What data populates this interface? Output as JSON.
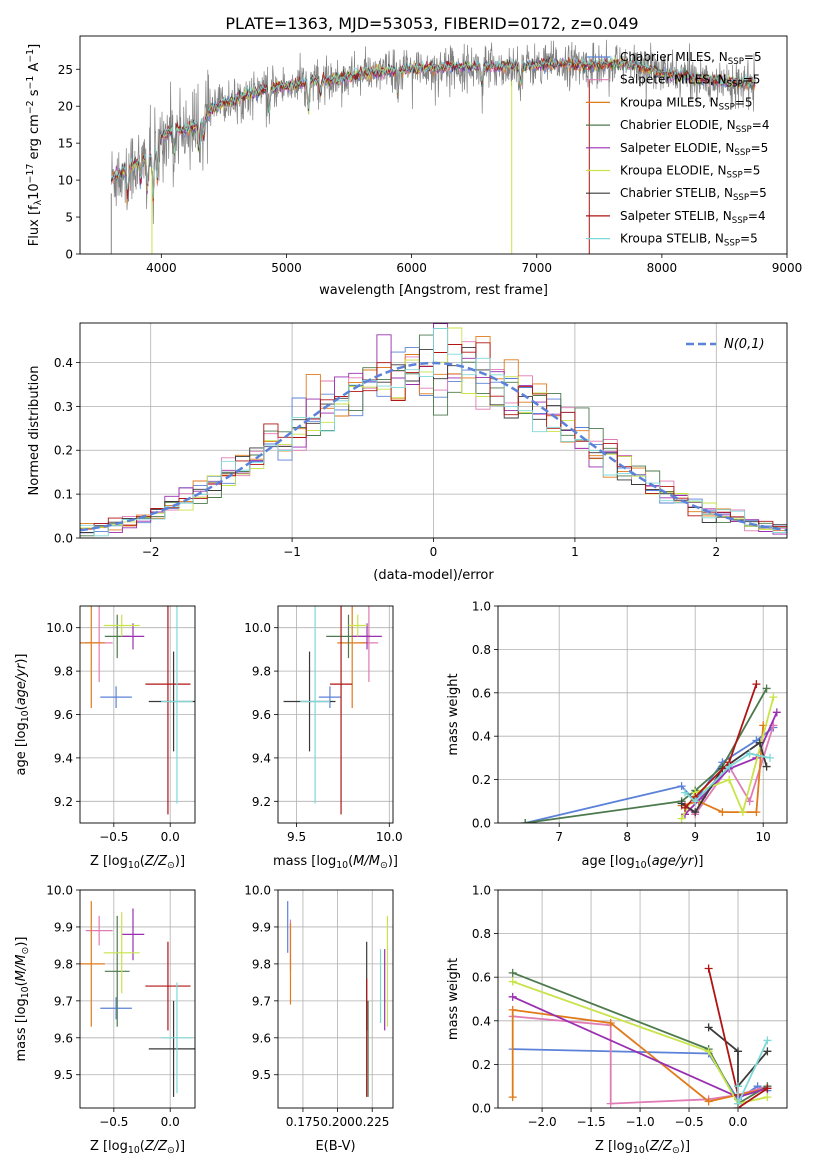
{
  "figure_title": "PLATE=1363, MJD=53053, FIBERID=0172, z=0.049",
  "models": [
    {
      "name": "Chabrier MILES, N$_{SSP}$=5",
      "label": "Chabrier MILES, N",
      "sub": "SSP",
      "tail": "=5",
      "color": "#5b82d8"
    },
    {
      "name": "Salpeter MILES, N$_{SSP}$=5",
      "label": "Salpeter MILES, N",
      "sub": "SSP",
      "tail": "=5",
      "color": "#e07bb5"
    },
    {
      "name": "Kroupa MILES, N$_{SSP}$=5",
      "label": "Kroupa MILES, N",
      "sub": "SSP",
      "tail": "=5",
      "color": "#e07a1a"
    },
    {
      "name": "Chabrier ELODIE, N$_{SSP}$=4",
      "label": "Chabrier ELODIE, N",
      "sub": "SSP",
      "tail": "=4",
      "color": "#4c7a4c"
    },
    {
      "name": "Salpeter ELODIE, N$_{SSP}$=5",
      "label": "Salpeter ELODIE, N",
      "sub": "SSP",
      "tail": "=5",
      "color": "#9a2fb0"
    },
    {
      "name": "Kroupa ELODIE, N$_{SSP}$=5",
      "label": "Kroupa ELODIE, N",
      "sub": "SSP",
      "tail": "=5",
      "color": "#c9e34a"
    },
    {
      "name": "Chabrier STELIB, N$_{SSP}$=5",
      "label": "Chabrier STELIB, N",
      "sub": "SSP",
      "tail": "=5",
      "color": "#3a3a3a"
    },
    {
      "name": "Salpeter STELIB, N$_{SSP}$=4",
      "label": "Salpeter STELIB, N",
      "sub": "SSP",
      "tail": "=4",
      "color": "#b01515"
    },
    {
      "name": "Kroupa STELIB, N$_{SSP}$=5",
      "label": "Kroupa STELIB, N",
      "sub": "SSP",
      "tail": "=5",
      "color": "#7fd8d8"
    }
  ],
  "chart_data": [
    {
      "id": "spectrum",
      "type": "line",
      "xlabel": "wavelength [Angstrom, rest frame]",
      "ylabel_parts": [
        "Flux [f",
        "λ",
        "10",
        "−17",
        " erg cm",
        "−2",
        " s",
        "−1",
        " A",
        "−1",
        "]"
      ],
      "xlim": [
        3350,
        9000
      ],
      "ylim": [
        0,
        29.5
      ],
      "xticks": [
        4000,
        5000,
        6000,
        7000,
        8000,
        9000
      ],
      "yticks": [
        0,
        5,
        10,
        15,
        20,
        25
      ],
      "legend": "upper right",
      "data_color": "#808080",
      "continuum_x": [
        3600,
        3700,
        3800,
        3900,
        4000,
        4100,
        4200,
        4300,
        4400,
        4500,
        4600,
        4800,
        5000,
        5200,
        5400,
        5600,
        5800,
        6000,
        6200,
        6400,
        6600,
        6800,
        7000,
        7200,
        7400,
        7600,
        7800,
        8000,
        8200,
        8400,
        8600,
        8750
      ],
      "continuum_y": [
        10.2,
        11.3,
        12.2,
        13.0,
        15.8,
        17.0,
        16.8,
        17.5,
        19.5,
        20.4,
        21.0,
        22.2,
        22.7,
        23.3,
        23.7,
        24.3,
        24.7,
        25.0,
        25.2,
        25.4,
        25.3,
        25.4,
        25.5,
        25.8,
        25.5,
        25.7,
        25.5,
        24.5,
        24.0,
        23.5,
        23.2,
        23.0
      ],
      "absorption": [
        {
          "x": 3730,
          "depth": 4.0
        },
        {
          "x": 3835,
          "depth": 3.0
        },
        {
          "x": 3889,
          "depth": 4.0
        },
        {
          "x": 3934,
          "depth": 7.0
        },
        {
          "x": 3969,
          "depth": 5.0
        },
        {
          "x": 4102,
          "depth": 3.5
        },
        {
          "x": 4300,
          "depth": 4.0
        },
        {
          "x": 4340,
          "depth": 3.0
        },
        {
          "x": 4861,
          "depth": 3.0
        },
        {
          "x": 5175,
          "depth": 4.0
        },
        {
          "x": 5270,
          "depth": 2.0
        },
        {
          "x": 5890,
          "depth": 3.0
        },
        {
          "x": 6563,
          "depth": 2.5
        },
        {
          "x": 6870,
          "depth": 2.5
        }
      ],
      "masked_drops": [
        {
          "x": 3600,
          "color": "#808080"
        },
        {
          "x": 3925,
          "color": "#c9e34a"
        },
        {
          "x": 6800,
          "color": "#c9e34a"
        },
        {
          "x": 7420,
          "color": "#b01515"
        }
      ]
    },
    {
      "id": "residuals",
      "type": "bar",
      "xlabel": "(data-model)/error",
      "ylabel": "Normed distribution",
      "xlim": [
        -2.5,
        2.5
      ],
      "ylim": [
        0,
        0.49
      ],
      "xticks": [
        -2,
        -1,
        0,
        1,
        2
      ],
      "yticks": [
        0.0,
        0.1,
        0.2,
        0.3,
        0.4
      ],
      "grid": true,
      "legend": "upper right",
      "reference_label": "N(0,1)",
      "reference_color": "#5b82d8",
      "bin_width": 0.1
    },
    {
      "id": "age-vs-Z",
      "type": "scatter",
      "xlabel": "Z [log10(Z/Z⊙)]",
      "ylabel": "age  [log10(age/yr)]",
      "xlim": [
        -0.8,
        0.22
      ],
      "ylim": [
        9.1,
        10.1
      ],
      "xticks": [
        -0.5,
        0.0
      ],
      "yticks": [
        9.2,
        9.4,
        9.6,
        9.8,
        10.0
      ],
      "grid": true,
      "points": [
        {
          "x": -0.48,
          "y": 9.68,
          "xerr": 0.14,
          "yerr": 0.05
        },
        {
          "x": -0.63,
          "y": 9.93,
          "xerr": 0.12,
          "yerr": 0.18
        },
        {
          "x": -0.7,
          "y": 9.93,
          "xerr": 0.12,
          "yerr": 0.3
        },
        {
          "x": -0.47,
          "y": 9.96,
          "xerr": 0.11,
          "yerr": 0.1
        },
        {
          "x": -0.33,
          "y": 9.96,
          "xerr": 0.1,
          "yerr": 0.06
        },
        {
          "x": -0.43,
          "y": 10.01,
          "xerr": 0.16,
          "yerr": 0.05
        },
        {
          "x": 0.03,
          "y": 9.66,
          "xerr": 0.22,
          "yerr": 0.23
        },
        {
          "x": -0.02,
          "y": 9.74,
          "xerr": 0.2,
          "yerr": 0.6
        },
        {
          "x": 0.06,
          "y": 9.66,
          "xerr": 0.14,
          "yerr": 0.47
        }
      ]
    },
    {
      "id": "age-vs-mass",
      "type": "scatter",
      "xlabel": "mass [log10(M/M⊙)]",
      "ylabel": "",
      "xlim": [
        9.4,
        10.02
      ],
      "ylim": [
        9.1,
        10.1
      ],
      "xticks": [
        9.5,
        10.0
      ],
      "yticks": [
        9.2,
        9.4,
        9.6,
        9.8,
        10.0
      ],
      "grid": true,
      "points": [
        {
          "x": 9.68,
          "y": 9.68,
          "xerr": 0.06,
          "yerr": 0.05
        },
        {
          "x": 9.89,
          "y": 9.93,
          "xerr": 0.05,
          "yerr": 0.18
        },
        {
          "x": 9.8,
          "y": 9.93,
          "xerr": 0.08,
          "yerr": 0.3
        },
        {
          "x": 9.78,
          "y": 9.96,
          "xerr": 0.12,
          "yerr": 0.1
        },
        {
          "x": 9.88,
          "y": 9.96,
          "xerr": 0.08,
          "yerr": 0.06
        },
        {
          "x": 9.83,
          "y": 10.01,
          "xerr": 0.05,
          "yerr": 0.05
        },
        {
          "x": 9.57,
          "y": 9.66,
          "xerr": 0.14,
          "yerr": 0.23
        },
        {
          "x": 9.74,
          "y": 9.74,
          "xerr": 0.06,
          "yerr": 0.6
        },
        {
          "x": 9.6,
          "y": 9.66,
          "xerr": 0.08,
          "yerr": 0.47
        }
      ]
    },
    {
      "id": "weight-vs-age",
      "type": "line",
      "xlabel": "age  [log10(age/yr)]",
      "ylabel": "mass weight",
      "xlim": [
        6.1,
        10.35
      ],
      "ylim": [
        0,
        1
      ],
      "xticks": [
        7,
        8,
        9,
        10
      ],
      "yticks": [
        0.0,
        0.2,
        0.4,
        0.6,
        0.8,
        1.0
      ],
      "grid": true,
      "series": [
        {
          "x": [
            6.5,
            8.8,
            9.0,
            9.4,
            9.9,
            10.15
          ],
          "y": [
            0.0,
            0.17,
            0.1,
            0.28,
            0.38,
            0.44
          ]
        },
        {
          "x": [
            8.85,
            9.0,
            9.5,
            9.8,
            10.15
          ],
          "y": [
            0.08,
            0.04,
            0.26,
            0.1,
            0.45
          ]
        },
        {
          "x": [
            8.8,
            9.05,
            9.4,
            9.9,
            10.0
          ],
          "y": [
            0.08,
            0.1,
            0.05,
            0.05,
            0.45
          ]
        },
        {
          "x": [
            6.5,
            8.8,
            9.0,
            9.4,
            10.05
          ],
          "y": [
            0.0,
            0.1,
            0.15,
            0.26,
            0.62
          ]
        },
        {
          "x": [
            8.85,
            9.1,
            9.5,
            9.9,
            10.2
          ],
          "y": [
            0.04,
            0.12,
            0.25,
            0.3,
            0.51
          ]
        },
        {
          "x": [
            8.8,
            9.0,
            9.5,
            9.7,
            10.15
          ],
          "y": [
            0.02,
            0.14,
            0.2,
            0.05,
            0.58
          ]
        },
        {
          "x": [
            8.8,
            9.0,
            9.4,
            9.95,
            10.05
          ],
          "y": [
            0.09,
            0.05,
            0.25,
            0.37,
            0.26
          ]
        },
        {
          "x": [
            8.85,
            9.0,
            9.5,
            9.9
          ],
          "y": [
            0.07,
            0.12,
            0.28,
            0.64
          ]
        },
        {
          "x": [
            8.85,
            9.0,
            9.5,
            9.8,
            10.1
          ],
          "y": [
            0.14,
            0.1,
            0.26,
            0.32,
            0.3
          ]
        }
      ]
    },
    {
      "id": "mass-vs-Z",
      "type": "scatter",
      "xlabel": "Z [log10(Z/Z⊙)]",
      "ylabel": "mass [log10(M/M⊙)]",
      "xlim": [
        -0.8,
        0.22
      ],
      "ylim": [
        9.41,
        10.0
      ],
      "xticks": [
        -0.5,
        0.0
      ],
      "yticks": [
        9.5,
        9.6,
        9.7,
        9.8,
        9.9,
        10.0
      ],
      "grid": true,
      "points": [
        {
          "x": -0.48,
          "y": 9.68,
          "xerr": 0.14,
          "yerr": 0.03
        },
        {
          "x": -0.63,
          "y": 9.89,
          "xerr": 0.12,
          "yerr": 0.04
        },
        {
          "x": -0.7,
          "y": 9.8,
          "xerr": 0.12,
          "yerr": 0.17
        },
        {
          "x": -0.47,
          "y": 9.78,
          "xerr": 0.11,
          "yerr": 0.15
        },
        {
          "x": -0.33,
          "y": 9.88,
          "xerr": 0.1,
          "yerr": 0.07
        },
        {
          "x": -0.43,
          "y": 9.83,
          "xerr": 0.16,
          "yerr": 0.11
        },
        {
          "x": 0.03,
          "y": 9.57,
          "xerr": 0.22,
          "yerr": 0.13
        },
        {
          "x": -0.02,
          "y": 9.74,
          "xerr": 0.2,
          "yerr": 0.12
        },
        {
          "x": 0.06,
          "y": 9.6,
          "xerr": 0.14,
          "yerr": 0.15
        }
      ]
    },
    {
      "id": "mass-vs-ebv",
      "type": "scatter",
      "xlabel": "E(B-V)",
      "ylabel": "",
      "xlim": [
        0.157,
        0.24
      ],
      "ylim": [
        9.41,
        10.0
      ],
      "xticks": [
        0.175,
        0.2,
        0.225
      ],
      "xticklabels": [
        "0.175",
        "0.200",
        "0.225"
      ],
      "yticks": [
        9.5,
        9.6,
        9.7,
        9.8,
        9.9,
        10.0
      ],
      "grid": true,
      "points": [
        {
          "x": 0.164,
          "y": 9.9,
          "yerr": 0.07
        },
        {
          "x": 0.166,
          "y": 9.85,
          "yerr": 0.07
        },
        {
          "x": 0.166,
          "y": 9.8,
          "yerr": 0.11
        },
        {
          "x": 0.222,
          "y": 9.57,
          "yerr": 0.13
        },
        {
          "x": 0.234,
          "y": 9.73,
          "yerr": 0.11
        },
        {
          "x": 0.236,
          "y": 9.78,
          "yerr": 0.15
        },
        {
          "x": 0.221,
          "y": 9.74,
          "yerr": 0.12
        },
        {
          "x": 0.221,
          "y": 9.6,
          "yerr": 0.16
        },
        {
          "x": 0.231,
          "y": 9.74,
          "yerr": 0.1
        }
      ]
    },
    {
      "id": "weight-vs-Z",
      "type": "line",
      "xlabel": "Z [log10(Z/Z⊙)]",
      "ylabel": "mass weight",
      "xlim": [
        -2.45,
        0.5
      ],
      "ylim": [
        0,
        1
      ],
      "xticks": [
        -2.0,
        -1.5,
        -1.0,
        -0.5,
        0.0
      ],
      "yticks": [
        0.0,
        0.2,
        0.4,
        0.6,
        0.8,
        1.0
      ],
      "grid": true,
      "series": [
        {
          "x": [
            -2.3,
            -0.3,
            0.0,
            0.2,
            0.3
          ],
          "y": [
            0.27,
            0.25,
            0.04,
            0.1,
            0.08
          ]
        },
        {
          "x": [
            -2.3,
            -1.3,
            -1.3,
            -0.3,
            0.0,
            0.3
          ],
          "y": [
            0.42,
            0.38,
            0.02,
            0.04,
            0.06,
            0.1
          ]
        },
        {
          "x": [
            -2.3,
            -2.3,
            -1.3,
            -0.3,
            0.0,
            0.3
          ],
          "y": [
            0.05,
            0.45,
            0.39,
            0.03,
            0.06,
            0.09
          ]
        },
        {
          "x": [
            -2.3,
            -0.3,
            0.0,
            0.3
          ],
          "y": [
            0.62,
            0.27,
            0.02,
            0.1
          ]
        },
        {
          "x": [
            -2.3,
            0.0,
            0.3
          ],
          "y": [
            0.51,
            0.05,
            0.09
          ]
        },
        {
          "x": [
            -2.3,
            -0.3,
            0.0,
            0.3
          ],
          "y": [
            0.58,
            0.26,
            0.02,
            0.05
          ]
        },
        {
          "x": [
            -0.3,
            0.0,
            0.0,
            0.3
          ],
          "y": [
            0.37,
            0.26,
            0.1,
            0.26
          ]
        },
        {
          "x": [
            -0.3,
            0.0,
            0.0,
            0.3
          ],
          "y": [
            0.64,
            0.06,
            0.0,
            0.09
          ]
        },
        {
          "x": [
            0.0,
            0.0,
            0.3
          ],
          "y": [
            0.1,
            0.02,
            0.31
          ]
        }
      ]
    }
  ]
}
